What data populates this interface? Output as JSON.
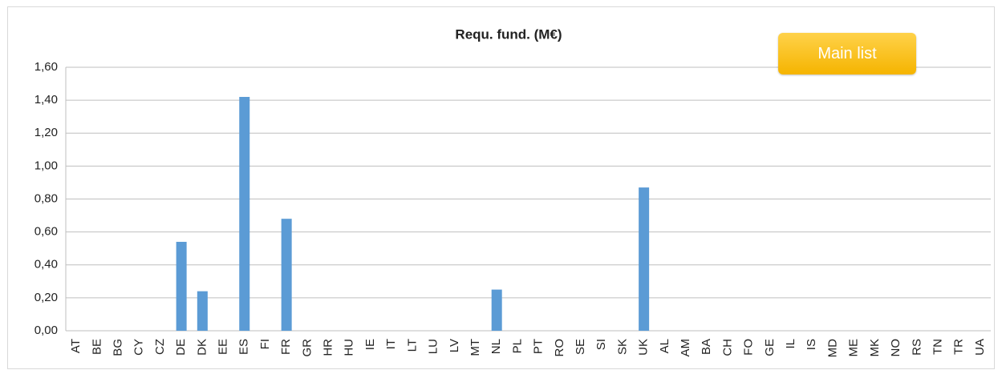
{
  "chart_data": {
    "type": "bar",
    "title": "Requ. fund. (M€)",
    "categories": [
      "AT",
      "BE",
      "BG",
      "CY",
      "CZ",
      "DE",
      "DK",
      "EE",
      "ES",
      "FI",
      "FR",
      "GR",
      "HR",
      "HU",
      "IE",
      "IT",
      "LT",
      "LU",
      "LV",
      "MT",
      "NL",
      "PL",
      "PT",
      "RO",
      "SE",
      "SI",
      "SK",
      "UK",
      "AL",
      "AM",
      "BA",
      "CH",
      "FO",
      "GE",
      "IL",
      "IS",
      "MD",
      "ME",
      "MK",
      "NO",
      "RS",
      "TN",
      "TR",
      "UA"
    ],
    "values": [
      0,
      0,
      0,
      0,
      0,
      0.54,
      0.24,
      0,
      1.42,
      0,
      0.68,
      0,
      0,
      0,
      0,
      0,
      0,
      0,
      0,
      0,
      0.25,
      0,
      0,
      0,
      0,
      0,
      0,
      0.87,
      0,
      0,
      0,
      0,
      0,
      0,
      0,
      0,
      0,
      0,
      0,
      0,
      0,
      0,
      0,
      0
    ],
    "color": "#5b9bd5",
    "ylim": [
      0,
      1.6
    ],
    "yticks": [
      {
        "value": 0,
        "label": "0,00"
      },
      {
        "value": 0.2,
        "label": "0,20"
      },
      {
        "value": 0.4,
        "label": "0,40"
      },
      {
        "value": 0.6,
        "label": "0,60"
      },
      {
        "value": 0.8,
        "label": "0,80"
      },
      {
        "value": 1.0,
        "label": "1,00"
      },
      {
        "value": 1.2,
        "label": "1,20"
      },
      {
        "value": 1.4,
        "label": "1,40"
      },
      {
        "value": 1.6,
        "label": "1,60"
      }
    ],
    "grid": true
  },
  "button": {
    "label": "Main list"
  }
}
